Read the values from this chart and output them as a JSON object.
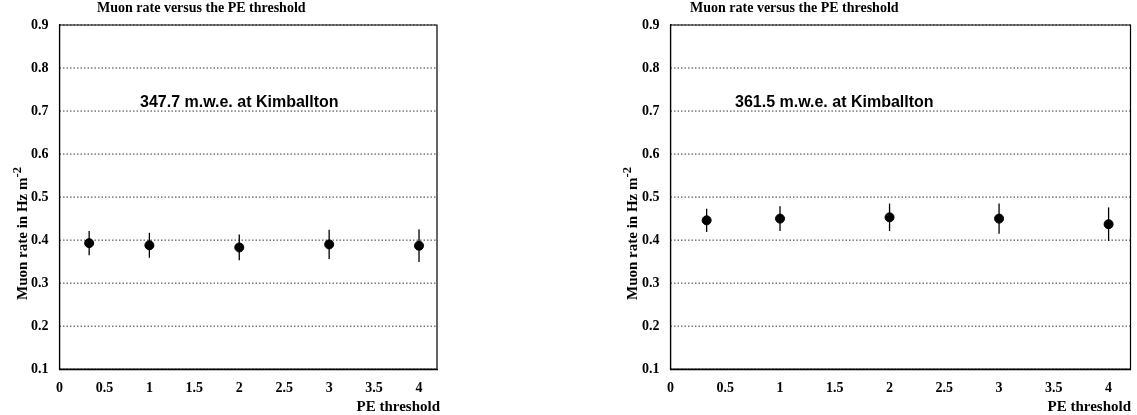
{
  "chart_data": [
    {
      "type": "scatter",
      "title": "Muon rate versus the PE threshold",
      "xlabel": "PE threshold",
      "ylabel": "Muon rate in Hz m$^{-2}$",
      "annotations": [
        "347.7 m.w.e. at Kimballton"
      ],
      "series": [
        {
          "color": "#000000",
          "x": [
            0.33,
            1,
            2,
            3,
            4
          ],
          "values": [
            0.393,
            0.388,
            0.383,
            0.39,
            0.387
          ],
          "errors": [
            0.028,
            0.029,
            0.03,
            0.034,
            0.038
          ]
        }
      ],
      "xlim": [
        0,
        4.2
      ],
      "xticks": [
        0,
        0.5,
        1,
        1.5,
        2,
        2.5,
        3,
        3.5,
        4
      ],
      "ylim": [
        0.1,
        0.9
      ],
      "yticks": [
        0.1,
        0.2,
        0.3,
        0.4,
        0.5,
        0.6,
        0.7,
        0.8,
        0.9
      ],
      "grid": "y",
      "marker": "circle",
      "legend": false
    },
    {
      "type": "scatter",
      "title": "Muon rate versus the PE threshold",
      "xlabel": "PE threshold",
      "ylabel": "Muon rate in Hz m$^{-2}$",
      "annotations": [
        "361.5 m.w.e. at Kimballton"
      ],
      "series": [
        {
          "color": "#000000",
          "x": [
            0.33,
            1,
            2,
            3,
            4
          ],
          "values": [
            0.446,
            0.45,
            0.453,
            0.45,
            0.437
          ],
          "errors": [
            0.027,
            0.029,
            0.032,
            0.035,
            0.039
          ]
        }
      ],
      "xlim": [
        0,
        4.2
      ],
      "xticks": [
        0,
        0.5,
        1,
        1.5,
        2,
        2.5,
        3,
        3.5,
        4
      ],
      "ylim": [
        0.1,
        0.9
      ],
      "yticks": [
        0.1,
        0.2,
        0.3,
        0.4,
        0.5,
        0.6,
        0.7,
        0.8,
        0.9
      ],
      "grid": "y",
      "marker": "circle",
      "legend": false
    }
  ]
}
